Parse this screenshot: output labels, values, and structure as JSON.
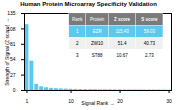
{
  "chart_data": {
    "type": "bar",
    "title": "Human Protein Microarray Specificity Validation",
    "xlabel": "Signal Rank",
    "ylabel": "Strength of Signal (Z score)",
    "x": [
      1,
      2,
      3,
      4,
      5,
      6,
      7,
      8,
      9,
      10,
      11,
      12,
      13,
      14,
      15,
      16,
      17,
      18,
      19,
      20,
      21,
      22,
      23,
      24,
      25,
      26,
      27,
      28,
      29,
      30
    ],
    "values": [
      115.43,
      51.4,
      10.67,
      6.5,
      4.8,
      3.8,
      3.2,
      2.8,
      2.4,
      2.1,
      1.9,
      1.7,
      1.55,
      1.45,
      1.35,
      1.25,
      1.18,
      1.12,
      1.06,
      1.01,
      0.97,
      0.93,
      0.89,
      0.86,
      0.83,
      0.8,
      0.77,
      0.74,
      0.71,
      0.68
    ],
    "color": "#5bc8f0",
    "xlim": [
      0.5,
      30.5
    ],
    "xticks": [
      1,
      10,
      20,
      30
    ],
    "ylim": [
      0,
      135
    ],
    "yticks": [
      0,
      27,
      54,
      81,
      108,
      135
    ],
    "table": {
      "headers": [
        "Rank",
        "Protein",
        "Z score",
        "S score"
      ],
      "rows": [
        [
          "1",
          "EZR",
          "115.43",
          "59.03"
        ],
        [
          "2",
          "ZW10",
          "51.4",
          "40.73"
        ],
        [
          "3",
          "ST88",
          "10.67",
          "2.73"
        ]
      ]
    }
  }
}
